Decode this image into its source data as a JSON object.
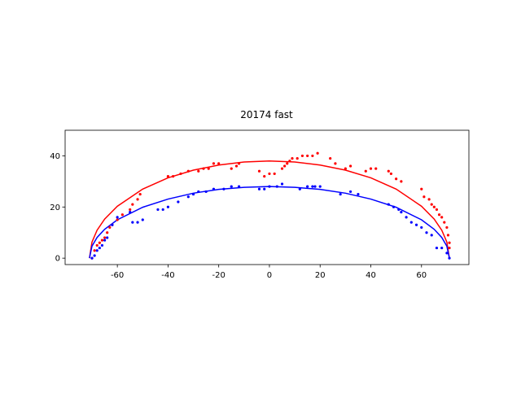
{
  "chart_data": {
    "type": "scatter",
    "title": "20174 fast",
    "xlim": [
      -80.6,
      78.7
    ],
    "ylim": [
      -2.5,
      50
    ],
    "xticks": [
      -60,
      -40,
      -20,
      0,
      20,
      40,
      60
    ],
    "yticks": [
      0,
      20,
      40
    ],
    "grid": false,
    "series": [
      {
        "style": "line",
        "color": "#ff0000",
        "x": [
          -71,
          -70,
          -68,
          -65,
          -60,
          -50,
          -40,
          -30,
          -20,
          -10,
          0,
          10,
          20,
          30,
          40,
          50,
          60,
          65,
          68,
          70,
          71
        ],
        "values": [
          0,
          6.3,
          10.9,
          15.3,
          20.3,
          27.0,
          31.4,
          34.4,
          36.4,
          37.6,
          38,
          37.6,
          36.4,
          34.4,
          31.4,
          27.0,
          20.3,
          15.3,
          10.9,
          6.3,
          0
        ]
      },
      {
        "style": "line",
        "color": "#0000ff",
        "x": [
          -71,
          -70,
          -68,
          -65,
          -60,
          -50,
          -40,
          -30,
          -20,
          -10,
          0,
          10,
          20,
          30,
          40,
          50,
          60,
          65,
          68,
          70,
          71
        ],
        "values": [
          0,
          4.7,
          8.1,
          11.3,
          15.0,
          19.9,
          23.1,
          25.4,
          26.9,
          27.7,
          28,
          27.7,
          26.9,
          25.4,
          23.1,
          19.9,
          15.0,
          11.3,
          8.1,
          4.7,
          0
        ]
      },
      {
        "style": "points",
        "color": "#ff0000",
        "x": [
          -70,
          -69,
          -68,
          -67,
          -66,
          -65,
          -64,
          -63,
          -62,
          -60,
          -58,
          -55,
          -54,
          -52,
          -51,
          -40,
          -38,
          -35,
          -32,
          -28,
          -26,
          -24,
          -22,
          -20,
          -15,
          -13,
          -12,
          -4,
          -2,
          0,
          2,
          5,
          6,
          7,
          8,
          9,
          11,
          13,
          15,
          17,
          19,
          24,
          26,
          30,
          32,
          38,
          40,
          42,
          47,
          48,
          50,
          52,
          60,
          61,
          63,
          64,
          65,
          66,
          67,
          68,
          69,
          70,
          70.5,
          71,
          71
        ],
        "values": [
          0,
          3,
          5,
          6,
          7,
          8,
          10,
          12,
          13,
          15,
          17,
          19,
          21,
          23,
          25,
          32,
          32,
          33,
          34,
          34,
          35,
          35,
          37,
          37,
          35,
          36,
          37,
          34,
          32,
          33,
          33,
          35,
          36,
          37,
          38,
          39,
          39,
          40,
          40,
          40,
          41,
          39,
          37,
          35,
          36,
          34,
          35,
          35,
          34,
          33,
          31,
          30,
          27,
          24,
          23,
          21,
          20,
          19,
          17,
          16,
          14,
          12,
          9,
          6,
          4
        ]
      },
      {
        "style": "points",
        "color": "#0000ff",
        "x": [
          -70,
          -69,
          -68,
          -67,
          -66,
          -65,
          -64,
          -62,
          -60,
          -55,
          -54,
          -52,
          -50,
          -44,
          -42,
          -40,
          -36,
          -32,
          -30,
          -28,
          -25,
          -22,
          -18,
          -15,
          -12,
          -4,
          -2,
          0,
          3,
          5,
          12,
          15,
          17,
          18,
          20,
          28,
          32,
          35,
          47,
          49,
          51,
          52,
          54,
          56,
          58,
          60,
          62,
          64,
          66,
          68,
          70,
          71
        ],
        "values": [
          0,
          1,
          3,
          4,
          5,
          7,
          8,
          13,
          16,
          18,
          14,
          14,
          15,
          19,
          19,
          20,
          22,
          24,
          25,
          26,
          26,
          27,
          27,
          28,
          28,
          27,
          27,
          28,
          28,
          29,
          27,
          28,
          28,
          28,
          28,
          25,
          26,
          25,
          21,
          20,
          19,
          18,
          16,
          14,
          13,
          12,
          10,
          9,
          4,
          4,
          2,
          0
        ]
      }
    ]
  }
}
